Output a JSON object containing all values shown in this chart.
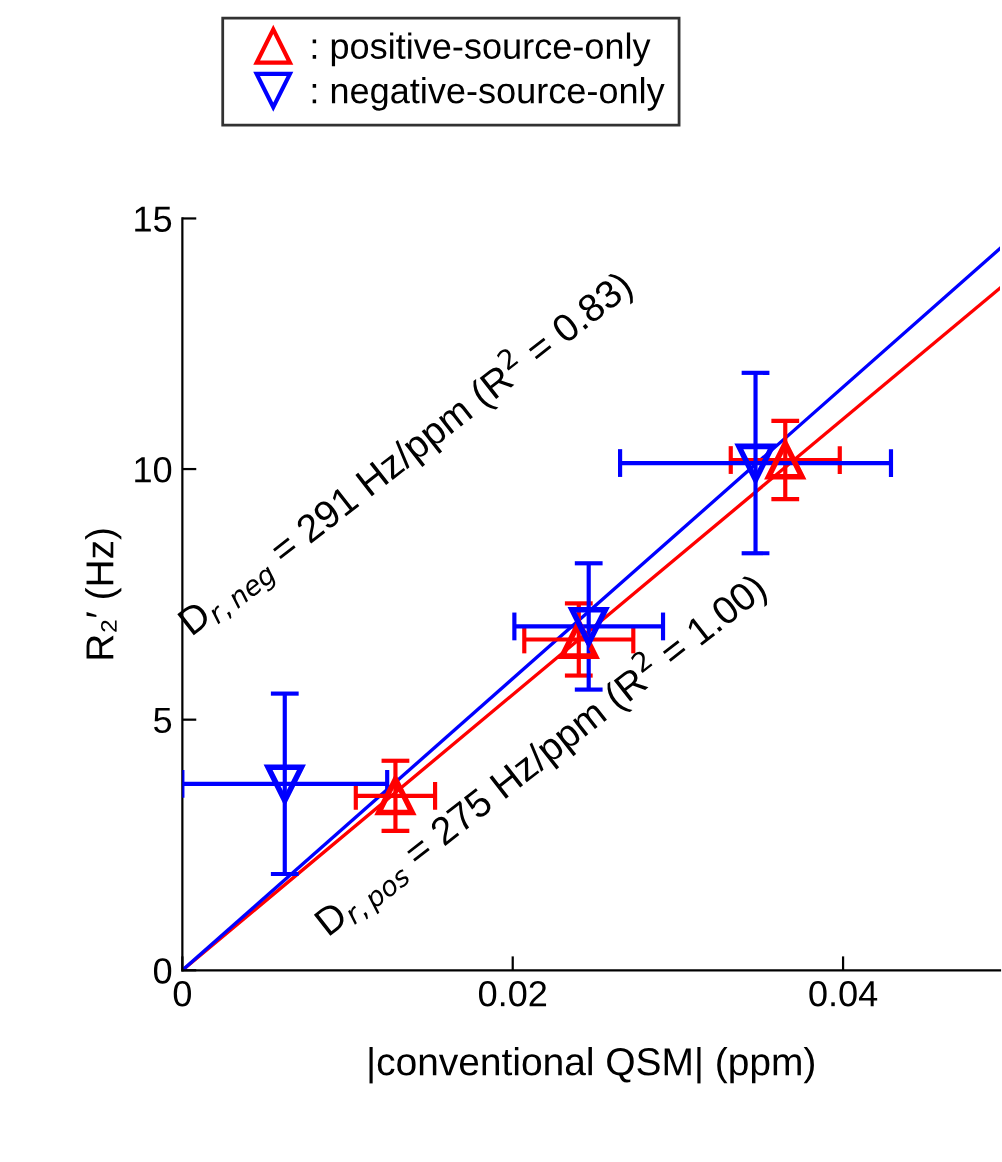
{
  "chart_data": {
    "type": "scatter",
    "xlabel": "|conventional QSM| (ppm)",
    "ylabel": "R₂′ (Hz)",
    "xlim": [
      0,
      0.0495
    ],
    "ylim": [
      0,
      15
    ],
    "xticks": [
      0,
      0.02,
      0.04
    ],
    "yticks": [
      0,
      5,
      10,
      15
    ],
    "grid": false,
    "legend": "top",
    "series": [
      {
        "name": ": positive-source-only",
        "color": "#ff0000",
        "marker": "triangle",
        "x": [
          0.0129,
          0.024,
          0.0365
        ],
        "values": [
          3.48,
          6.6,
          10.18
        ],
        "errors": [
          0.7,
          0.72,
          0.78
        ],
        "xerrors": [
          0.0024,
          0.0033,
          0.0033
        ]
      },
      {
        "name": ": negative-source-only",
        "color": "#0000ff",
        "marker": "triangle-down",
        "x": [
          0.0062,
          0.0246,
          0.0347
        ],
        "values": [
          3.72,
          6.86,
          10.12
        ],
        "errors": [
          1.8,
          1.26,
          1.8
        ],
        "xerrors": [
          0.0062,
          0.0045,
          0.0082
        ]
      },
      {
        "type": "line",
        "color": "#ff0000",
        "marker": "none",
        "x": [
          0,
          0.0495
        ],
        "values": [
          0,
          13.61
        ]
      },
      {
        "type": "line",
        "color": "#0000ff",
        "marker": "none",
        "x": [
          0,
          0.0495
        ],
        "values": [
          0,
          14.4
        ]
      }
    ],
    "annotations": [
      "D$_{r,neg}$ = 291 Hz/ppm (R$^{2}$ = 0.83)",
      "D$_{r,pos}$ = 275 Hz/ppm (R$^{2}$ = 1.00)"
    ]
  }
}
